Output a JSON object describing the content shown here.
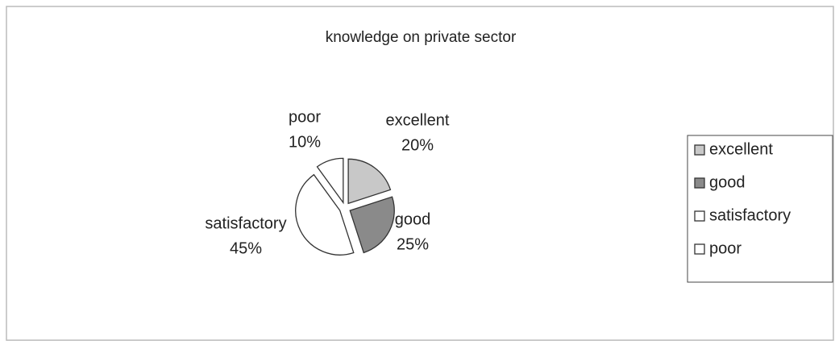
{
  "chart_data": {
    "type": "pie",
    "title": "knowledge on private sector",
    "categories": [
      "excellent",
      "good",
      "satisfactory",
      "poor"
    ],
    "values": [
      20,
      25,
      45,
      10
    ],
    "value_labels": [
      "20%",
      "25%",
      "45%",
      "10%"
    ],
    "colors": [
      "#c8c8c8",
      "#8a8a8a",
      "#ffffff",
      "#ffffff"
    ],
    "legend": "right"
  }
}
